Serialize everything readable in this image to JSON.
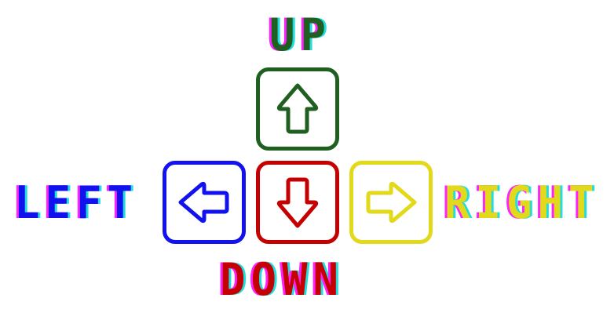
{
  "controls": {
    "up": {
      "label": "UP",
      "color": "#1f5f1f",
      "icon": "arrow-up-icon"
    },
    "left": {
      "label": "LEFT",
      "color": "#1212ee",
      "icon": "arrow-left-icon"
    },
    "down": {
      "label": "DOWN",
      "color": "#c40000",
      "icon": "arrow-down-icon"
    },
    "right": {
      "label": "RIGHT",
      "color": "#e2d91b",
      "icon": "arrow-right-icon"
    }
  },
  "glitch_colors": [
    "#ff22ff",
    "#22dddd"
  ]
}
